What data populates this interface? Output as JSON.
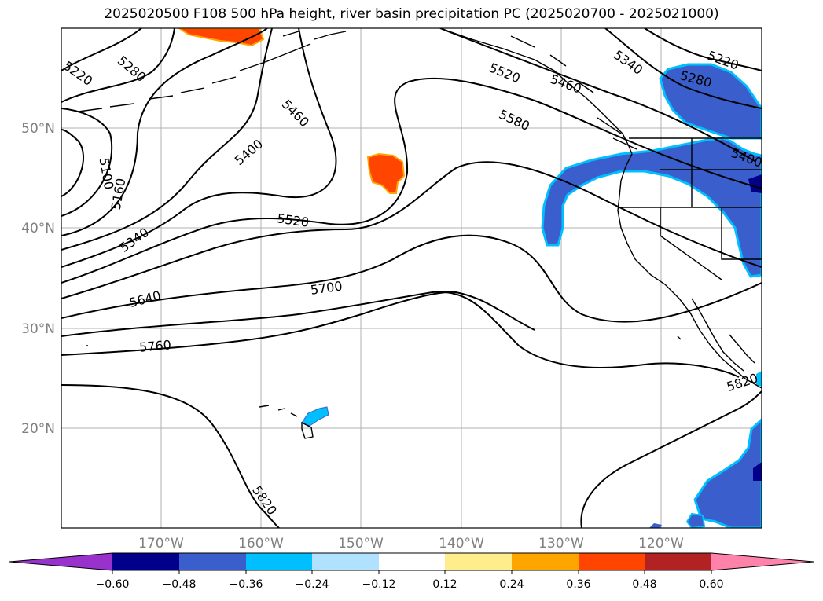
{
  "title": "2025020500 F108 500 hPa height, river basin precipitation PC (2025020700 - 2025021000)",
  "map": {
    "lat_labels": [
      "50°N",
      "40°N",
      "30°N",
      "20°N"
    ],
    "lon_labels": [
      "170°W",
      "160°W",
      "150°W",
      "140°W",
      "130°W",
      "120°W"
    ],
    "contour_labels": [
      "5220",
      "5280",
      "5100",
      "5160",
      "5400",
      "5460",
      "5340",
      "5520",
      "5640",
      "5700",
      "5760",
      "5820",
      "5520",
      "5580",
      "5460",
      "5340",
      "5220",
      "5280",
      "5400",
      "5820"
    ]
  },
  "colorbar": {
    "colors": [
      "#9932cc",
      "#00008b",
      "#3a5fcd",
      "#00bfff",
      "#b0e2ff",
      "#ffffff",
      "#ffec8b",
      "#ffa500",
      "#ff4500",
      "#b22222",
      "#ff82ab"
    ],
    "ticks": [
      "−0.60",
      "−0.48",
      "−0.36",
      "−0.24",
      "−0.12",
      "0.12",
      "0.24",
      "0.36",
      "0.48",
      "0.60"
    ]
  }
}
